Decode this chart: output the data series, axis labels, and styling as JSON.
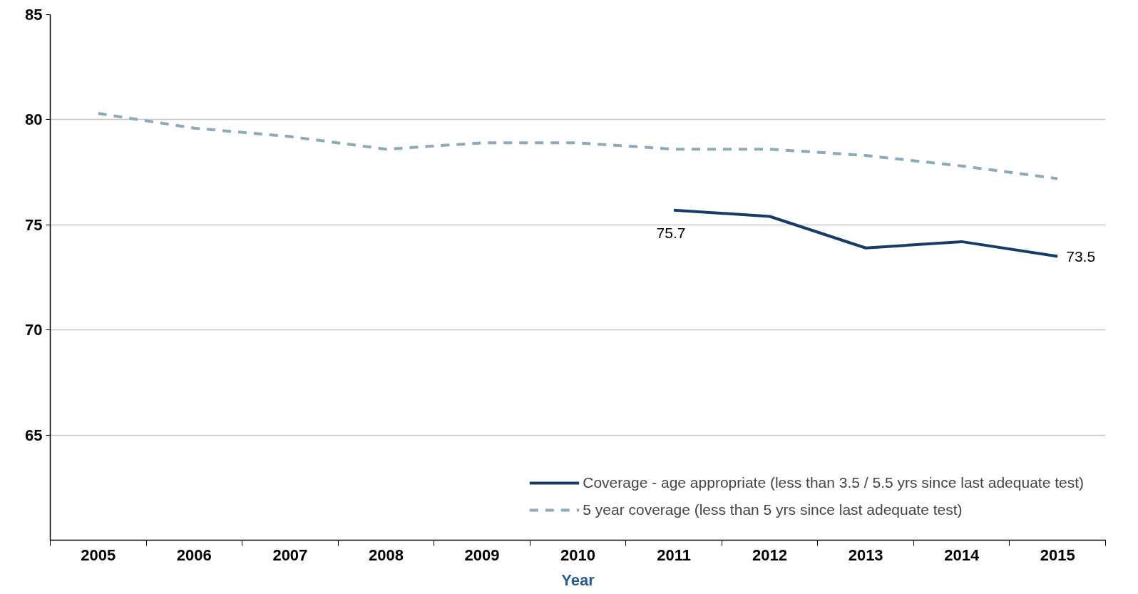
{
  "chart_data": {
    "type": "line",
    "xlabel": "Year",
    "categories": [
      "2005",
      "2006",
      "2007",
      "2008",
      "2009",
      "2010",
      "2011",
      "2012",
      "2013",
      "2014",
      "2015"
    ],
    "series": [
      {
        "name": "Coverage - age appropriate (less than 3.5 / 5.5 yrs since last adequate test)",
        "color": "#173d66",
        "line_style": "solid",
        "values": [
          null,
          null,
          null,
          null,
          null,
          null,
          75.7,
          75.4,
          73.9,
          74.2,
          73.5
        ],
        "value_labels": [
          null,
          null,
          null,
          null,
          null,
          null,
          "75.7",
          null,
          null,
          null,
          "73.5"
        ]
      },
      {
        "name": "5 year coverage (less than 5 yrs since last adequate test)",
        "color": "#8eaab8",
        "line_style": "dashed",
        "values": [
          80.3,
          79.6,
          79.2,
          78.6,
          78.9,
          78.9,
          78.6,
          78.6,
          78.3,
          77.8,
          77.2
        ]
      }
    ],
    "ylim": [
      60,
      85
    ],
    "yticks": [
      65,
      70,
      75,
      80,
      85
    ],
    "grid": "y",
    "legend": "bottom right"
  }
}
